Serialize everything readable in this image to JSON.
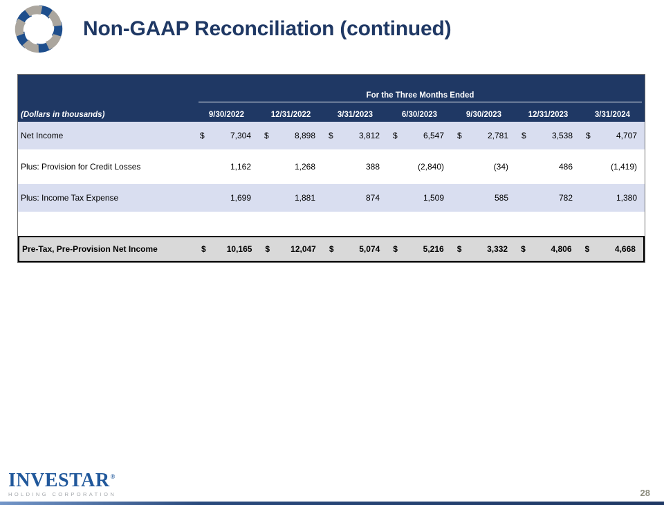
{
  "slide": {
    "title": "Non-GAAP Reconciliation (continued)",
    "page_number": "28"
  },
  "branding": {
    "logo": "investar-swirl-logo",
    "wordmark": "INVESTAR",
    "wordmark_registered": "®",
    "wordmark_sub": "HOLDING CORPORATION"
  },
  "colors": {
    "header_navy": "#1F3864",
    "shaded_row": "#D9DEF0",
    "total_row_bg": "#D9D9D9",
    "title_navy": "#1F3864",
    "wordmark_blue": "#21589B",
    "page_number_gray": "#8C8C7E",
    "logo_blue": "#1E4E8C",
    "logo_gray": "#ABA69E"
  },
  "table": {
    "dollars_note": "(Dollars in thousands)",
    "period_header": "For the Three Months Ended",
    "columns": [
      "9/30/2022",
      "12/31/2022",
      "3/31/2023",
      "6/30/2023",
      "9/30/2023",
      "12/31/2023",
      "3/31/2024"
    ],
    "rows": [
      {
        "label": "Net Income",
        "dollar": true,
        "shaded": true,
        "values": [
          "7,304",
          "8,898",
          "3,812",
          "6,547",
          "2,781",
          "3,538",
          "4,707"
        ]
      },
      {
        "label": "Plus: Provision for Credit Losses",
        "dollar": false,
        "shaded": false,
        "values": [
          "1,162",
          "1,268",
          "388",
          "(2,840)",
          "(34)",
          "486",
          "(1,419)"
        ]
      },
      {
        "label": "Plus: Income Tax Expense",
        "dollar": false,
        "shaded": true,
        "values": [
          "1,699",
          "1,881",
          "874",
          "1,509",
          "585",
          "782",
          "1,380"
        ]
      }
    ],
    "total_row": {
      "label": "Pre-Tax, Pre-Provision Net Income",
      "dollar": true,
      "values": [
        "10,165",
        "12,047",
        "5,074",
        "5,216",
        "3,332",
        "4,806",
        "4,668"
      ]
    }
  }
}
